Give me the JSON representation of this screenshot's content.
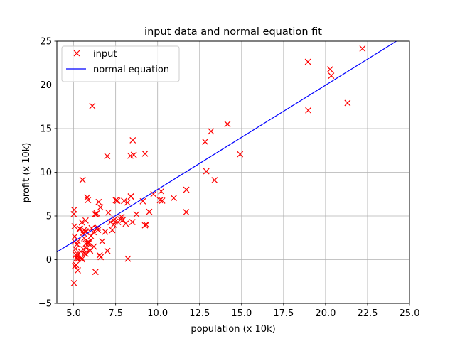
{
  "chart_data": {
    "type": "scatter",
    "title": "input data and normal equation fit",
    "xlabel": "population (x 10k)",
    "ylabel": "profit (x 10k)",
    "xlim": [
      4,
      25
    ],
    "ylim": [
      -5,
      25
    ],
    "xticks": [
      5,
      7.5,
      10,
      12.5,
      15,
      17.5,
      20,
      22.5,
      25
    ],
    "xtick_labels": [
      "5.0",
      "7.5",
      "10.0",
      "12.5",
      "15.0",
      "17.5",
      "20.0",
      "22.5",
      "25.0"
    ],
    "yticks": [
      -5,
      0,
      5,
      10,
      15,
      20,
      25
    ],
    "ytick_labels": [
      "−5",
      "0",
      "5",
      "10",
      "15",
      "20",
      "25"
    ],
    "grid": true,
    "legend": "upper left",
    "series": [
      {
        "name": "input",
        "kind": "scatter",
        "marker": "x",
        "color": "#ff0000",
        "points": [
          [
            6.11,
            17.59
          ],
          [
            5.53,
            9.13
          ],
          [
            8.52,
            13.66
          ],
          [
            7.0,
            11.85
          ],
          [
            5.86,
            6.82
          ],
          [
            8.38,
            11.89
          ],
          [
            7.48,
            4.35
          ],
          [
            8.58,
            12.0
          ],
          [
            6.49,
            6.6
          ],
          [
            5.05,
            3.82
          ],
          [
            5.71,
            3.25
          ],
          [
            14.16,
            15.51
          ],
          [
            5.73,
            3.16
          ],
          [
            8.41,
            7.23
          ],
          [
            5.64,
            0.72
          ],
          [
            5.38,
            3.51
          ],
          [
            6.37,
            5.3
          ],
          [
            5.13,
            0.56
          ],
          [
            6.43,
            3.65
          ],
          [
            7.07,
            5.39
          ],
          [
            6.19,
            3.14
          ],
          [
            20.27,
            21.77
          ],
          [
            5.49,
            4.26
          ],
          [
            6.33,
            5.19
          ],
          [
            5.56,
            3.08
          ],
          [
            18.95,
            22.64
          ],
          [
            12.83,
            13.5
          ],
          [
            10.96,
            7.05
          ],
          [
            13.18,
            14.69
          ],
          [
            22.2,
            24.15
          ],
          [
            5.25,
            -1.22
          ],
          [
            6.59,
            5.99
          ],
          [
            9.25,
            12.13
          ],
          [
            5.89,
            1.85
          ],
          [
            8.21,
            6.54
          ],
          [
            7.93,
            4.56
          ],
          [
            8.1,
            4.12
          ],
          [
            5.61,
            3.39
          ],
          [
            7.64,
            4.29
          ],
          [
            7.38,
            4.0
          ],
          [
            5.43,
            0.93
          ],
          [
            6.37,
            3.55
          ],
          [
            5.17,
            0.15
          ],
          [
            10.27,
            6.75
          ],
          [
            5.73,
            1.84
          ],
          [
            5.03,
            5.71
          ],
          [
            5.24,
            0.62
          ],
          [
            6.27,
            5.21
          ],
          [
            5.49,
            0.05
          ],
          [
            7.01,
            1.0
          ],
          [
            5.63,
            2.45
          ],
          [
            7.51,
            6.79
          ],
          [
            6.55,
            0.5
          ],
          [
            5.2,
            1.76
          ],
          [
            8.4,
            7.23
          ],
          [
            7.45,
            4.64
          ],
          [
            8.74,
            5.2
          ],
          [
            9.12,
            6.68
          ],
          [
            9.33,
            4.0
          ],
          [
            5.11,
            1.23
          ],
          [
            5.46,
            0.2
          ],
          [
            6.61,
            0.29
          ],
          [
            5.25,
            0.11
          ],
          [
            7.3,
            3.38
          ],
          [
            21.31,
            17.93
          ],
          [
            5.02,
            -2.68
          ],
          [
            8.23,
            0.11
          ],
          [
            11.7,
            5.44
          ],
          [
            5.05,
            2.07
          ],
          [
            9.25,
            3.93
          ],
          [
            5.98,
            1.03
          ],
          [
            9.75,
            7.5
          ],
          [
            5.97,
            1.05
          ],
          [
            5.22,
            0.4
          ],
          [
            10.21,
            7.82
          ],
          [
            8.5,
            4.3
          ],
          [
            5.01,
            5.21
          ],
          [
            5.14,
            -0.6
          ],
          [
            5.58,
            1.2
          ],
          [
            6.3,
            -1.4
          ],
          [
            5.07,
            -0.75
          ],
          [
            5.25,
            2.1
          ],
          [
            5.79,
            1.93
          ],
          [
            5.89,
            2.05
          ],
          [
            5.36,
            3.55
          ],
          [
            5.71,
            0.67
          ],
          [
            5.91,
            1.98
          ],
          [
            6.03,
            2.7
          ],
          [
            5.71,
            4.49
          ],
          [
            5.06,
            2.64
          ],
          [
            5.81,
            7.13
          ],
          [
            7.6,
            6.74
          ],
          [
            12.9,
            10.12
          ],
          [
            13.39,
            9.1
          ],
          [
            14.91,
            12.07
          ],
          [
            11.71,
            8.0
          ],
          [
            18.97,
            17.09
          ],
          [
            20.34,
            21.05
          ],
          [
            10.14,
            6.8
          ],
          [
            9.5,
            5.47
          ],
          [
            8.0,
            6.72
          ],
          [
            7.85,
            4.9
          ],
          [
            6.45,
            3.4
          ],
          [
            6.88,
            3.2
          ],
          [
            7.2,
            4.3
          ],
          [
            5.75,
            1.3
          ],
          [
            6.2,
            1.5
          ],
          [
            6.07,
            3.6
          ],
          [
            7.8,
            4.6
          ],
          [
            6.7,
            2.1
          ]
        ]
      },
      {
        "name": "normal equation",
        "kind": "line",
        "color": "#0000ff",
        "intercept": -3.896,
        "slope": 1.193
      }
    ]
  }
}
